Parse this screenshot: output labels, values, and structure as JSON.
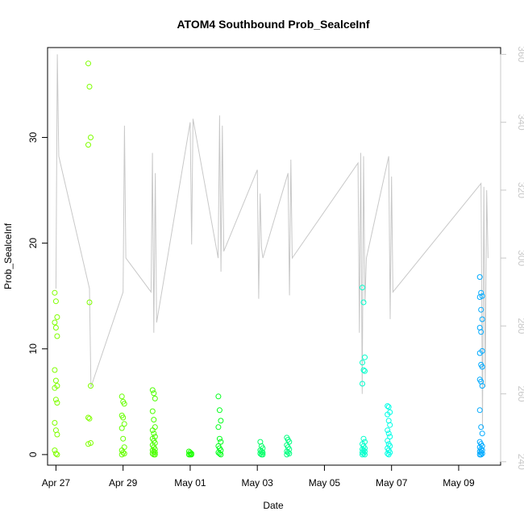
{
  "chart_data": {
    "type": "scatter",
    "title": "ATOM4 Southbound Prob_SealceInf",
    "xlabel": "Date",
    "ylabel": "Prob_SealceInf",
    "x_axis_type": "date",
    "xlim": [
      "2020-04-26T18:00",
      "2020-05-10T06:00"
    ],
    "x_ticks": [
      {
        "date": "2020-04-27",
        "label": "Apr 27"
      },
      {
        "date": "2020-04-29",
        "label": "Apr 29"
      },
      {
        "date": "2020-05-01",
        "label": "May 01"
      },
      {
        "date": "2020-05-03",
        "label": "May 03"
      },
      {
        "date": "2020-05-05",
        "label": "May 05"
      },
      {
        "date": "2020-05-07",
        "label": "May 07"
      },
      {
        "date": "2020-05-09",
        "label": "May 09"
      }
    ],
    "ylim": [
      -1,
      38.5
    ],
    "y_ticks": [
      0,
      10,
      20,
      30
    ],
    "y2lim": [
      239,
      362
    ],
    "y2_ticks": [
      240,
      260,
      280,
      300,
      320,
      340,
      360
    ],
    "y2_color": "#c8c8c8",
    "grid": false,
    "legend": "none",
    "point_groups": [
      {
        "date": "2020-04-27T00:00",
        "color": "#7fff00",
        "values": [
          15.3,
          14.5,
          13.0,
          12.5,
          12.0,
          11.2,
          8.0,
          7.0,
          6.5,
          6.3,
          5.2,
          4.9,
          3.0,
          2.3,
          1.9,
          0.4,
          0.1,
          0.0
        ]
      },
      {
        "date": "2020-04-28T00:00",
        "color": "#7fff00",
        "values": [
          37.0,
          34.8,
          30.0,
          29.3,
          14.4,
          6.5,
          3.5,
          3.4,
          1.1,
          1.0
        ]
      },
      {
        "date": "2020-04-29T00:00",
        "color": "#66ff00",
        "values": [
          5.5,
          5.0,
          4.8,
          3.7,
          3.5,
          2.9,
          2.5,
          1.5,
          0.7,
          0.4,
          0.2,
          0.1,
          0.0
        ]
      },
      {
        "date": "2020-04-29T22:00",
        "color": "#4cff00",
        "values": [
          6.1,
          5.8,
          5.3,
          4.1,
          3.3,
          2.6,
          2.3,
          2.0,
          1.7,
          1.5,
          1.3,
          1.1,
          0.9,
          0.7,
          0.5,
          0.4,
          0.3,
          0.2,
          0.1,
          0.0,
          0.0
        ]
      },
      {
        "date": "2020-05-01T00:00",
        "color": "#1aff00",
        "values": [
          0.3,
          0.2,
          0.1,
          0.0,
          0.0,
          0.0
        ]
      },
      {
        "date": "2020-05-01T21:00",
        "color": "#00ff1a",
        "values": [
          5.5,
          4.2,
          3.2,
          2.6,
          1.5,
          1.2,
          0.8,
          0.6,
          0.4,
          0.2,
          0.1,
          0.0
        ]
      },
      {
        "date": "2020-05-03T03:00",
        "color": "#00ff66",
        "values": [
          1.2,
          0.8,
          0.6,
          0.4,
          0.3,
          0.2,
          0.1,
          0.0,
          0.0
        ]
      },
      {
        "date": "2020-05-03T22:00",
        "color": "#00ff80",
        "values": [
          1.6,
          1.4,
          1.2,
          0.9,
          0.7,
          0.5,
          0.3,
          0.2,
          0.1,
          0.0
        ]
      },
      {
        "date": "2020-05-06T04:00",
        "color": "#00ffcc",
        "values": [
          15.8,
          14.4,
          9.2,
          8.7,
          8.0,
          7.9,
          6.7,
          1.5,
          1.2,
          1.0,
          0.8,
          0.6,
          0.5,
          0.4,
          0.3,
          0.2,
          0.1,
          0.0,
          0.0
        ]
      },
      {
        "date": "2020-05-06T22:00",
        "color": "#00ffe6",
        "values": [
          4.6,
          4.5,
          4.0,
          3.8,
          3.2,
          2.8,
          2.3,
          2.0,
          1.7,
          1.3,
          1.0,
          0.8,
          0.6,
          0.4,
          0.2,
          0.1,
          0.0
        ]
      },
      {
        "date": "2020-05-09T16:00",
        "color": "#00aaff",
        "values": [
          16.8,
          15.3,
          15.0,
          14.9,
          13.7,
          12.8,
          12.0,
          11.6,
          9.8,
          9.6,
          8.5,
          8.3,
          7.1,
          6.9,
          6.5,
          4.2,
          2.6,
          2.0,
          1.2,
          1.0,
          0.8,
          0.7,
          0.5,
          0.4,
          0.3,
          0.2,
          0.1,
          0.0,
          0.0
        ]
      }
    ],
    "line_series": {
      "color": "#c8c8c8",
      "axis": "right",
      "points": [
        [
          "2020-04-27T00:00",
          291
        ],
        [
          "2020-04-27T01:00",
          360
        ],
        [
          "2020-04-27T02:00",
          330
        ],
        [
          "2020-04-28T00:00",
          291
        ],
        [
          "2020-04-28T01:00",
          262
        ],
        [
          "2020-04-29T00:00",
          290
        ],
        [
          "2020-04-29T01:00",
          339
        ],
        [
          "2020-04-29T02:00",
          300
        ],
        [
          "2020-04-29T20:00",
          290
        ],
        [
          "2020-04-29T21:00",
          331
        ],
        [
          "2020-04-29T22:00",
          278
        ],
        [
          "2020-04-29T23:00",
          325
        ],
        [
          "2020-04-30T00:00",
          281
        ],
        [
          "2020-05-01T00:00",
          340
        ],
        [
          "2020-05-01T01:00",
          304
        ],
        [
          "2020-05-01T02:00",
          341
        ],
        [
          "2020-05-01T20:00",
          300
        ],
        [
          "2020-05-01T21:00",
          342
        ],
        [
          "2020-05-01T22:00",
          296
        ],
        [
          "2020-05-01T23:00",
          339
        ],
        [
          "2020-05-02T00:00",
          302
        ],
        [
          "2020-05-03T00:00",
          326
        ],
        [
          "2020-05-03T01:00",
          288
        ],
        [
          "2020-05-03T02:00",
          319
        ],
        [
          "2020-05-03T03:00",
          303
        ],
        [
          "2020-05-03T04:00",
          300
        ],
        [
          "2020-05-03T22:00",
          325
        ],
        [
          "2020-05-03T23:00",
          289
        ],
        [
          "2020-05-04T00:00",
          329
        ],
        [
          "2020-05-04T01:00",
          300
        ],
        [
          "2020-05-06T00:00",
          328
        ],
        [
          "2020-05-06T01:00",
          278
        ],
        [
          "2020-05-06T02:00",
          331
        ],
        [
          "2020-05-06T03:00",
          260
        ],
        [
          "2020-05-06T04:00",
          330
        ],
        [
          "2020-05-06T05:00",
          287
        ],
        [
          "2020-05-06T06:00",
          300
        ],
        [
          "2020-05-06T22:00",
          330
        ],
        [
          "2020-05-06T23:00",
          282
        ],
        [
          "2020-05-07T00:00",
          324
        ],
        [
          "2020-05-07T01:00",
          290
        ],
        [
          "2020-05-09T16:00",
          322
        ],
        [
          "2020-05-09T17:00",
          250
        ],
        [
          "2020-05-09T18:00",
          321
        ],
        [
          "2020-05-09T19:00",
          262
        ],
        [
          "2020-05-09T20:00",
          320
        ],
        [
          "2020-05-09T21:00",
          300
        ]
      ]
    }
  }
}
